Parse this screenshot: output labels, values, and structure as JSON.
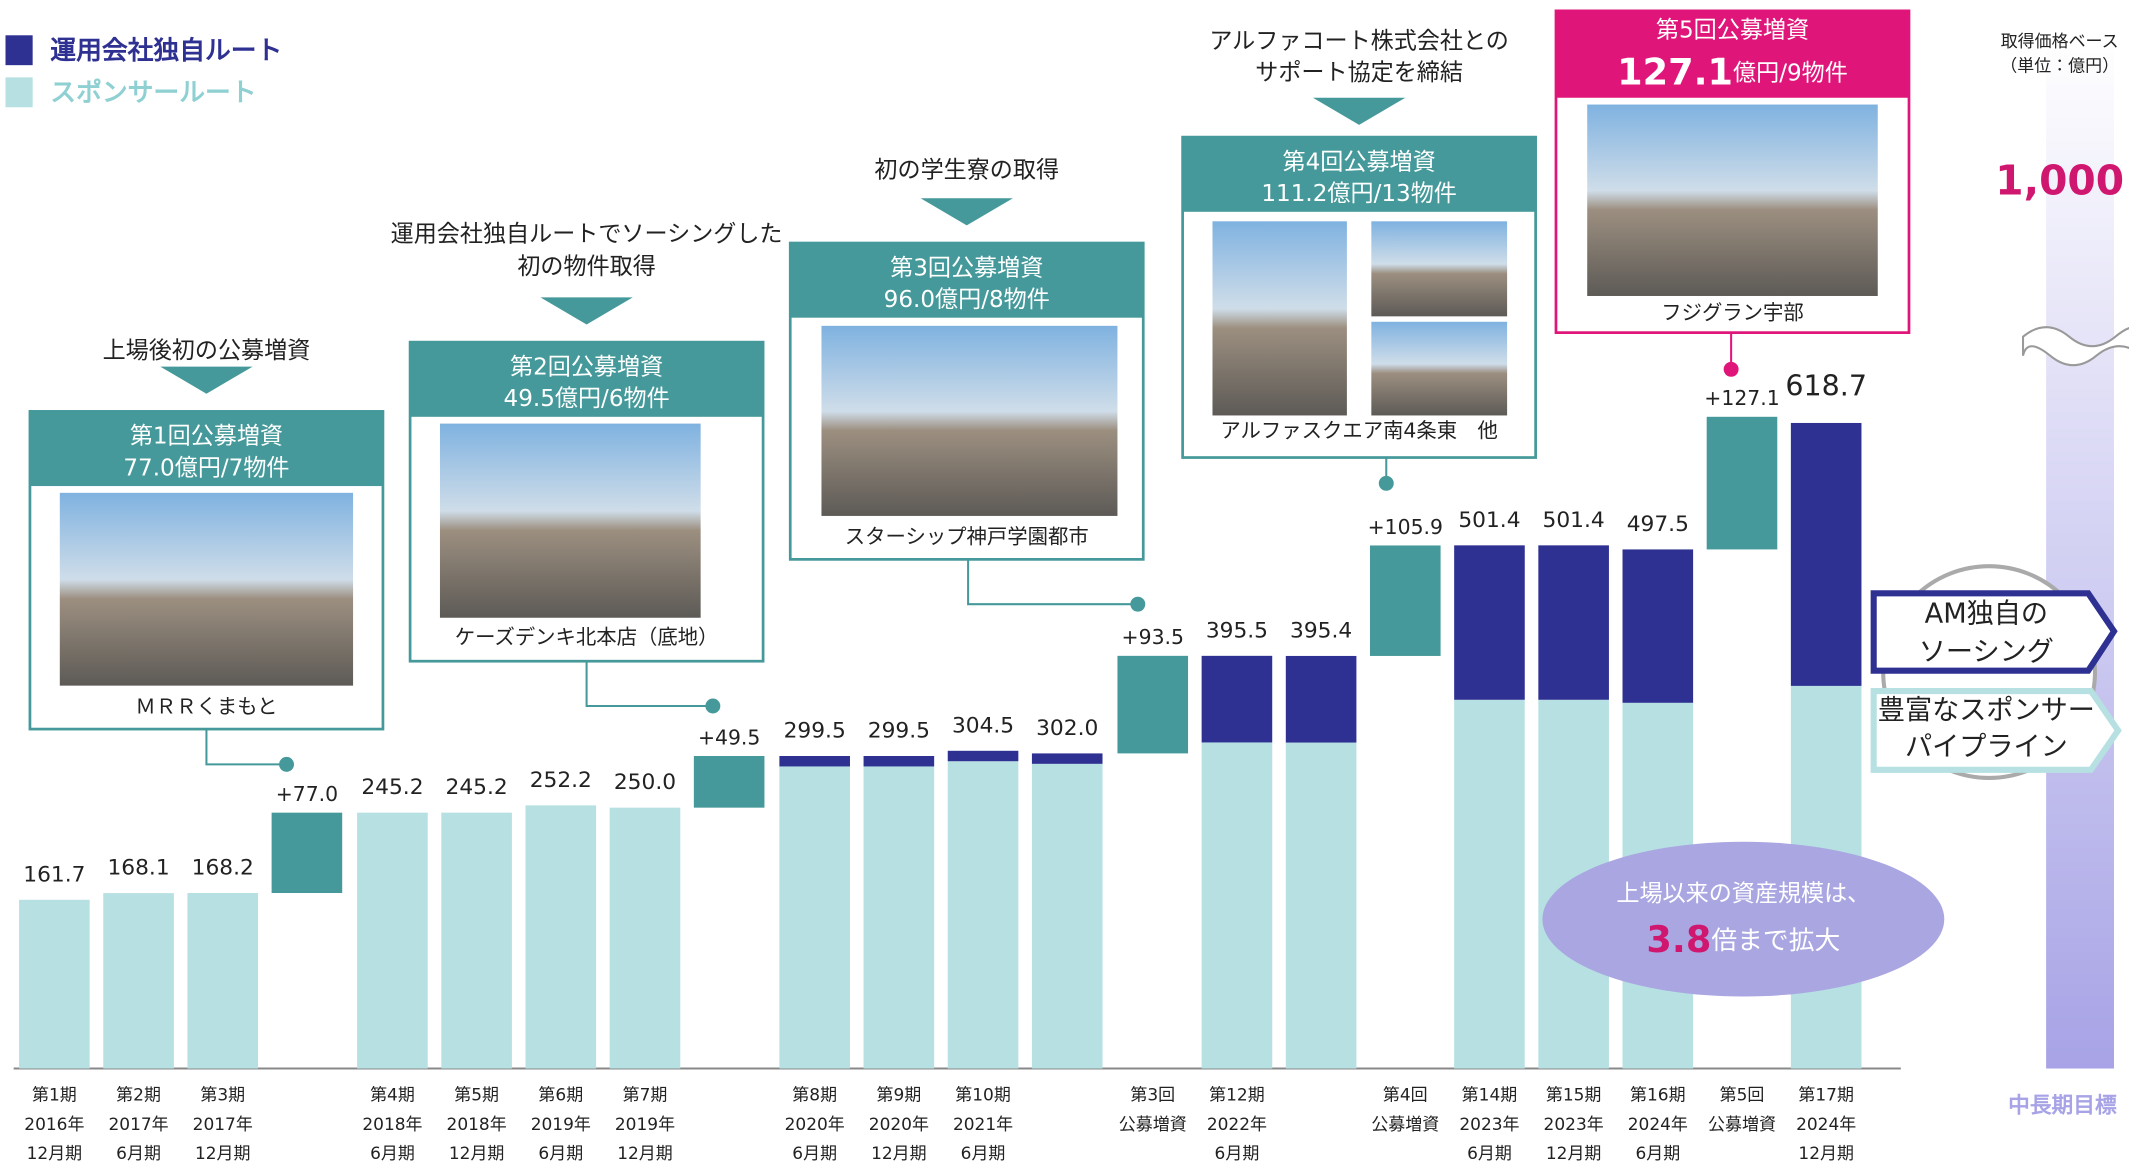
{
  "chart_data": {
    "type": "bar",
    "stacked": true,
    "categories": [
      [
        "第1期",
        "2016年",
        "12月期"
      ],
      [
        "第2期",
        "2017年",
        "6月期"
      ],
      [
        "第3期",
        "2017年",
        "12月期"
      ],
      null,
      [
        "第4期",
        "2018年",
        "6月期"
      ],
      [
        "第5期",
        "2018年",
        "12月期"
      ],
      [
        "第6期",
        "2019年",
        "6月期"
      ],
      [
        "第7期",
        "2019年",
        "12月期"
      ],
      null,
      [
        "第8期",
        "2020年",
        "6月期"
      ],
      [
        "第9期",
        "2020年",
        "12月期"
      ],
      [
        "第10期",
        "2021年",
        "6月期"
      ],
      null,
      [
        "第3回",
        "公募増資"
      ],
      [
        "第12期",
        "2022年",
        "6月期"
      ],
      null,
      [
        "第4回",
        "公募増資"
      ],
      [
        "第14期",
        "2023年",
        "6月期"
      ],
      [
        "第15期",
        "2023年",
        "12月期"
      ],
      [
        "第16期",
        "2024年",
        "6月期"
      ],
      [
        "第5回",
        "公募増資"
      ],
      [
        "第17期",
        "2024年",
        "12月期"
      ]
    ],
    "series": [
      {
        "name": "運用会社独自ルート",
        "color": "#2e3192",
        "values": [
          null,
          null,
          null,
          null,
          null,
          null,
          null,
          null,
          null,
          10,
          10,
          10,
          10,
          null,
          83,
          83,
          null,
          148,
          148,
          147,
          null,
          252
        ]
      },
      {
        "name": "スポンサールート",
        "color": "#b6e0e2",
        "values": [
          161.7,
          168.1,
          168.2,
          null,
          245.2,
          245.2,
          252.2,
          250.0,
          null,
          289.5,
          289.5,
          294.5,
          292.0,
          null,
          312.5,
          312.4,
          null,
          353.4,
          353.4,
          350.5,
          null,
          366.7
        ]
      }
    ],
    "totals": {
      "values": [
        161.7,
        168.1,
        168.2,
        null,
        245.2,
        245.2,
        252.2,
        250.0,
        null,
        299.5,
        299.5,
        304.5,
        302.0,
        null,
        395.5,
        395.4,
        null,
        501.4,
        501.4,
        497.5,
        null,
        618.7
      ],
      "value_labels": [
        "161.7",
        "168.1",
        "168.2",
        null,
        "245.2",
        "245.2",
        "252.2",
        "250.0",
        null,
        "299.5",
        "299.5",
        "304.5",
        "302.0",
        null,
        "395.5",
        "395.4",
        null,
        "501.4",
        "501.4",
        "497.5",
        null,
        "618.7"
      ]
    },
    "offerings": {
      "color": "#45999a",
      "values": [
        null,
        null,
        null,
        77.0,
        null,
        null,
        null,
        null,
        49.5,
        null,
        null,
        null,
        null,
        93.5,
        null,
        null,
        105.9,
        null,
        null,
        null,
        127.1,
        null
      ],
      "value_labels": [
        null,
        null,
        null,
        "+77.0",
        null,
        null,
        null,
        null,
        "+49.5",
        null,
        null,
        null,
        null,
        "+93.5",
        null,
        null,
        "+105.9",
        null,
        null,
        null,
        "+127.1",
        null
      ]
    },
    "target": {
      "category": "中長期目標",
      "value": 1000,
      "value_label": "1,000",
      "color": "#a7a3e6"
    },
    "ylim": [
      0,
      650
    ],
    "unit_note": [
      "取得価格ベース",
      "（単位：億円）"
    ],
    "callouts": [
      {
        "heading": [
          "上場後初の公募増資"
        ],
        "title": "第1回公募増資",
        "detail": [
          "77.0億円/7物件"
        ],
        "caption": "ＭＲＲくまもと"
      },
      {
        "heading": [
          "運用会社独自ルートでソーシングした",
          "初の物件取得"
        ],
        "title": "第2回公募増資",
        "detail": [
          "49.5億円/6物件"
        ],
        "caption": "ケーズデンキ北本店（底地）"
      },
      {
        "heading": [
          "初の学生寮の取得"
        ],
        "title": "第3回公募増資",
        "detail": [
          "96.0億円/8物件"
        ],
        "caption": "スターシップ神戸学園都市"
      },
      {
        "heading": [
          "アルファコート株式会社との",
          "サポート協定を締結"
        ],
        "title": "第4回公募増資",
        "detail": [
          "111.2億円/13物件"
        ],
        "caption": "アルファスクエア南4条東　他"
      },
      {
        "heading": [],
        "title": "第5回公募増資",
        "detail": [
          "127.1",
          "億円/9物件"
        ],
        "caption": "フジグラン宇部"
      }
    ],
    "pipeline": [
      [
        "AM独自の",
        "ソーシング"
      ],
      [
        "豊富なスポンサー",
        "パイプライン"
      ]
    ],
    "summary": {
      "lines": [
        "上場以来の資産規模は、"
      ],
      "multiple": "3.8",
      "suffix": "倍まで拡大"
    }
  }
}
